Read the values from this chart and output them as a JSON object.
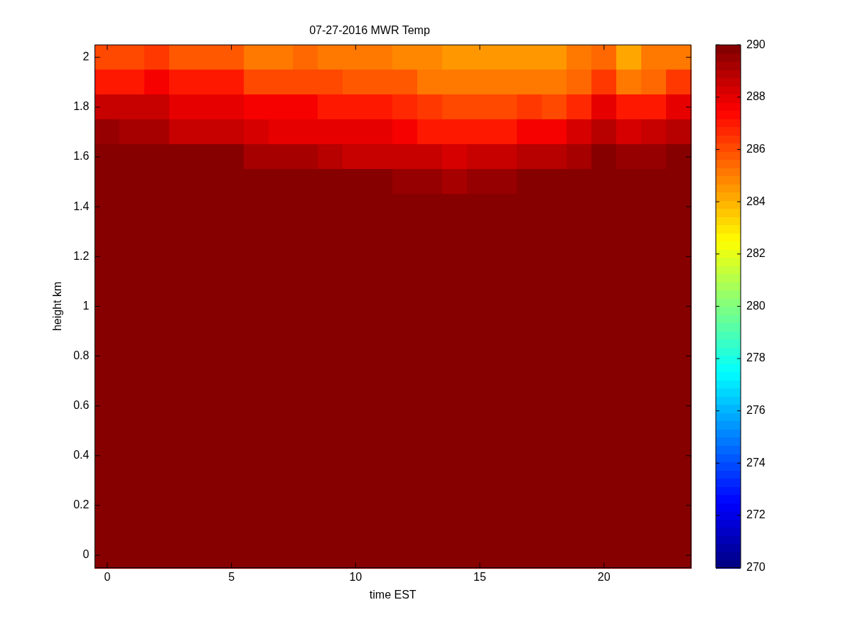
{
  "chart_data": {
    "type": "heatmap",
    "title": "07-27-2016 MWR Temp",
    "xlabel": "time EST",
    "ylabel": "height km",
    "categories": [
      "0",
      null,
      null,
      null,
      null,
      "5",
      null,
      null,
      null,
      null,
      "10",
      null,
      null,
      null,
      null,
      "15",
      null,
      null,
      null,
      null,
      "20",
      null,
      null,
      null
    ],
    "y_categories": [
      "2",
      null,
      "1.8",
      null,
      "1.6",
      null,
      "1.4",
      null,
      "1.2",
      null,
      "1",
      null,
      "0.8",
      null,
      "0.6",
      null,
      "0.4",
      null,
      "0.2",
      null,
      "0"
    ],
    "clim": [
      270,
      290
    ],
    "cticks": [
      270,
      272,
      274,
      276,
      278,
      280,
      282,
      284,
      286,
      288,
      290
    ],
    "cells": [
      [
        286.0,
        286.0,
        286.5,
        285.8,
        285.8,
        285.8,
        285.1,
        285.1,
        285.5,
        285.1,
        285.0,
        285.0,
        284.8,
        284.7,
        284.4,
        284.4,
        284.4,
        284.4,
        284.4,
        285.0,
        285.5,
        284.2,
        285.0,
        285.3
      ],
      [
        287.1,
        287.1,
        287.5,
        286.9,
        286.9,
        286.9,
        286.1,
        286.1,
        286.1,
        286.1,
        285.8,
        285.8,
        285.7,
        285.1,
        285.1,
        285.1,
        285.1,
        285.1,
        285.1,
        285.5,
        286.5,
        285.3,
        285.5,
        286.3
      ],
      [
        288.6,
        288.6,
        288.6,
        288.0,
        288.0,
        288.0,
        287.5,
        287.5,
        287.5,
        286.9,
        286.9,
        286.9,
        286.7,
        286.3,
        286.0,
        286.0,
        286.0,
        286.4,
        286.0,
        286.8,
        287.9,
        286.9,
        287.1,
        287.9
      ],
      [
        289.4,
        289.2,
        289.2,
        288.7,
        288.7,
        288.7,
        288.4,
        288.1,
        288.1,
        288.1,
        287.9,
        287.9,
        287.5,
        287.1,
        287.1,
        287.1,
        287.1,
        287.5,
        287.5,
        288.2,
        288.8,
        288.2,
        288.6,
        288.8
      ],
      [
        290,
        290,
        290,
        290,
        290,
        290,
        289.3,
        289.3,
        289.3,
        289.0,
        288.6,
        288.6,
        288.6,
        288.6,
        288.2,
        288.5,
        288.5,
        288.8,
        288.8,
        289.3,
        290,
        289.6,
        289.6,
        290
      ],
      [
        290,
        290,
        290,
        290,
        290,
        290,
        290,
        290,
        290,
        290,
        289.7,
        289.7,
        289.6,
        289.4,
        289.1,
        289.4,
        289.4,
        289.7,
        289.7,
        290,
        290,
        290,
        290,
        290
      ],
      [
        290,
        290,
        290,
        290,
        290,
        290,
        290,
        290,
        290,
        290,
        290,
        290,
        290,
        290,
        290,
        290,
        290,
        290,
        290,
        290,
        290,
        290,
        290,
        290
      ],
      [
        290,
        290,
        290,
        290,
        290,
        290,
        290,
        290,
        290,
        290,
        290,
        290,
        290,
        290,
        290,
        290,
        290,
        290,
        290,
        290,
        290,
        290,
        290,
        290
      ],
      [
        290,
        290,
        290,
        290,
        290,
        290,
        290,
        290,
        290,
        290,
        290,
        290,
        290,
        290,
        290,
        290,
        290,
        290,
        290,
        290,
        290,
        290,
        290,
        290
      ],
      [
        290,
        290,
        290,
        290,
        290,
        290,
        290,
        290,
        290,
        290,
        290,
        290,
        290,
        290,
        290,
        290,
        290,
        290,
        290,
        290,
        290,
        290,
        290,
        290
      ],
      [
        290,
        290,
        290,
        290,
        290,
        290,
        290,
        290,
        290,
        290,
        290,
        290,
        290,
        290,
        290,
        290,
        290,
        290,
        290,
        290,
        290,
        290,
        290,
        290
      ],
      [
        290,
        290,
        290,
        290,
        290,
        290,
        290,
        290,
        290,
        290,
        290,
        290,
        290,
        290,
        290,
        290,
        290,
        290,
        290,
        290,
        290,
        290,
        290,
        290
      ],
      [
        290,
        290,
        290,
        290,
        290,
        290,
        290,
        290,
        290,
        290,
        290,
        290,
        290,
        290,
        290,
        290,
        290,
        290,
        290,
        290,
        290,
        290,
        290,
        290
      ],
      [
        290,
        290,
        290,
        290,
        290,
        290,
        290,
        290,
        290,
        290,
        290,
        290,
        290,
        290,
        290,
        290,
        290,
        290,
        290,
        290,
        290,
        290,
        290,
        290
      ],
      [
        290,
        290,
        290,
        290,
        290,
        290,
        290,
        290,
        290,
        290,
        290,
        290,
        290,
        290,
        290,
        290,
        290,
        290,
        290,
        290,
        290,
        290,
        290,
        290
      ],
      [
        290,
        290,
        290,
        290,
        290,
        290,
        290,
        290,
        290,
        290,
        290,
        290,
        290,
        290,
        290,
        290,
        290,
        290,
        290,
        290,
        290,
        290,
        290,
        290
      ],
      [
        290,
        290,
        290,
        290,
        290,
        290,
        290,
        290,
        290,
        290,
        290,
        290,
        290,
        290,
        290,
        290,
        290,
        290,
        290,
        290,
        290,
        290,
        290,
        290
      ],
      [
        290,
        290,
        290,
        290,
        290,
        290,
        290,
        290,
        290,
        290,
        290,
        290,
        290,
        290,
        290,
        290,
        290,
        290,
        290,
        290,
        290,
        290,
        290,
        290
      ],
      [
        290,
        290,
        290,
        290,
        290,
        290,
        290,
        290,
        290,
        290,
        290,
        290,
        290,
        290,
        290,
        290,
        290,
        290,
        290,
        290,
        290,
        290,
        290,
        290
      ],
      [
        290,
        290,
        290,
        290,
        290,
        290,
        290,
        290,
        290,
        290,
        290,
        290,
        290,
        290,
        290,
        290,
        290,
        290,
        290,
        290,
        290,
        290,
        290,
        290
      ],
      [
        290,
        290,
        290,
        290,
        290,
        290,
        290,
        290,
        290,
        290,
        290,
        290,
        290,
        290,
        290,
        290,
        290,
        290,
        290,
        290,
        290,
        290,
        290,
        290
      ]
    ]
  }
}
